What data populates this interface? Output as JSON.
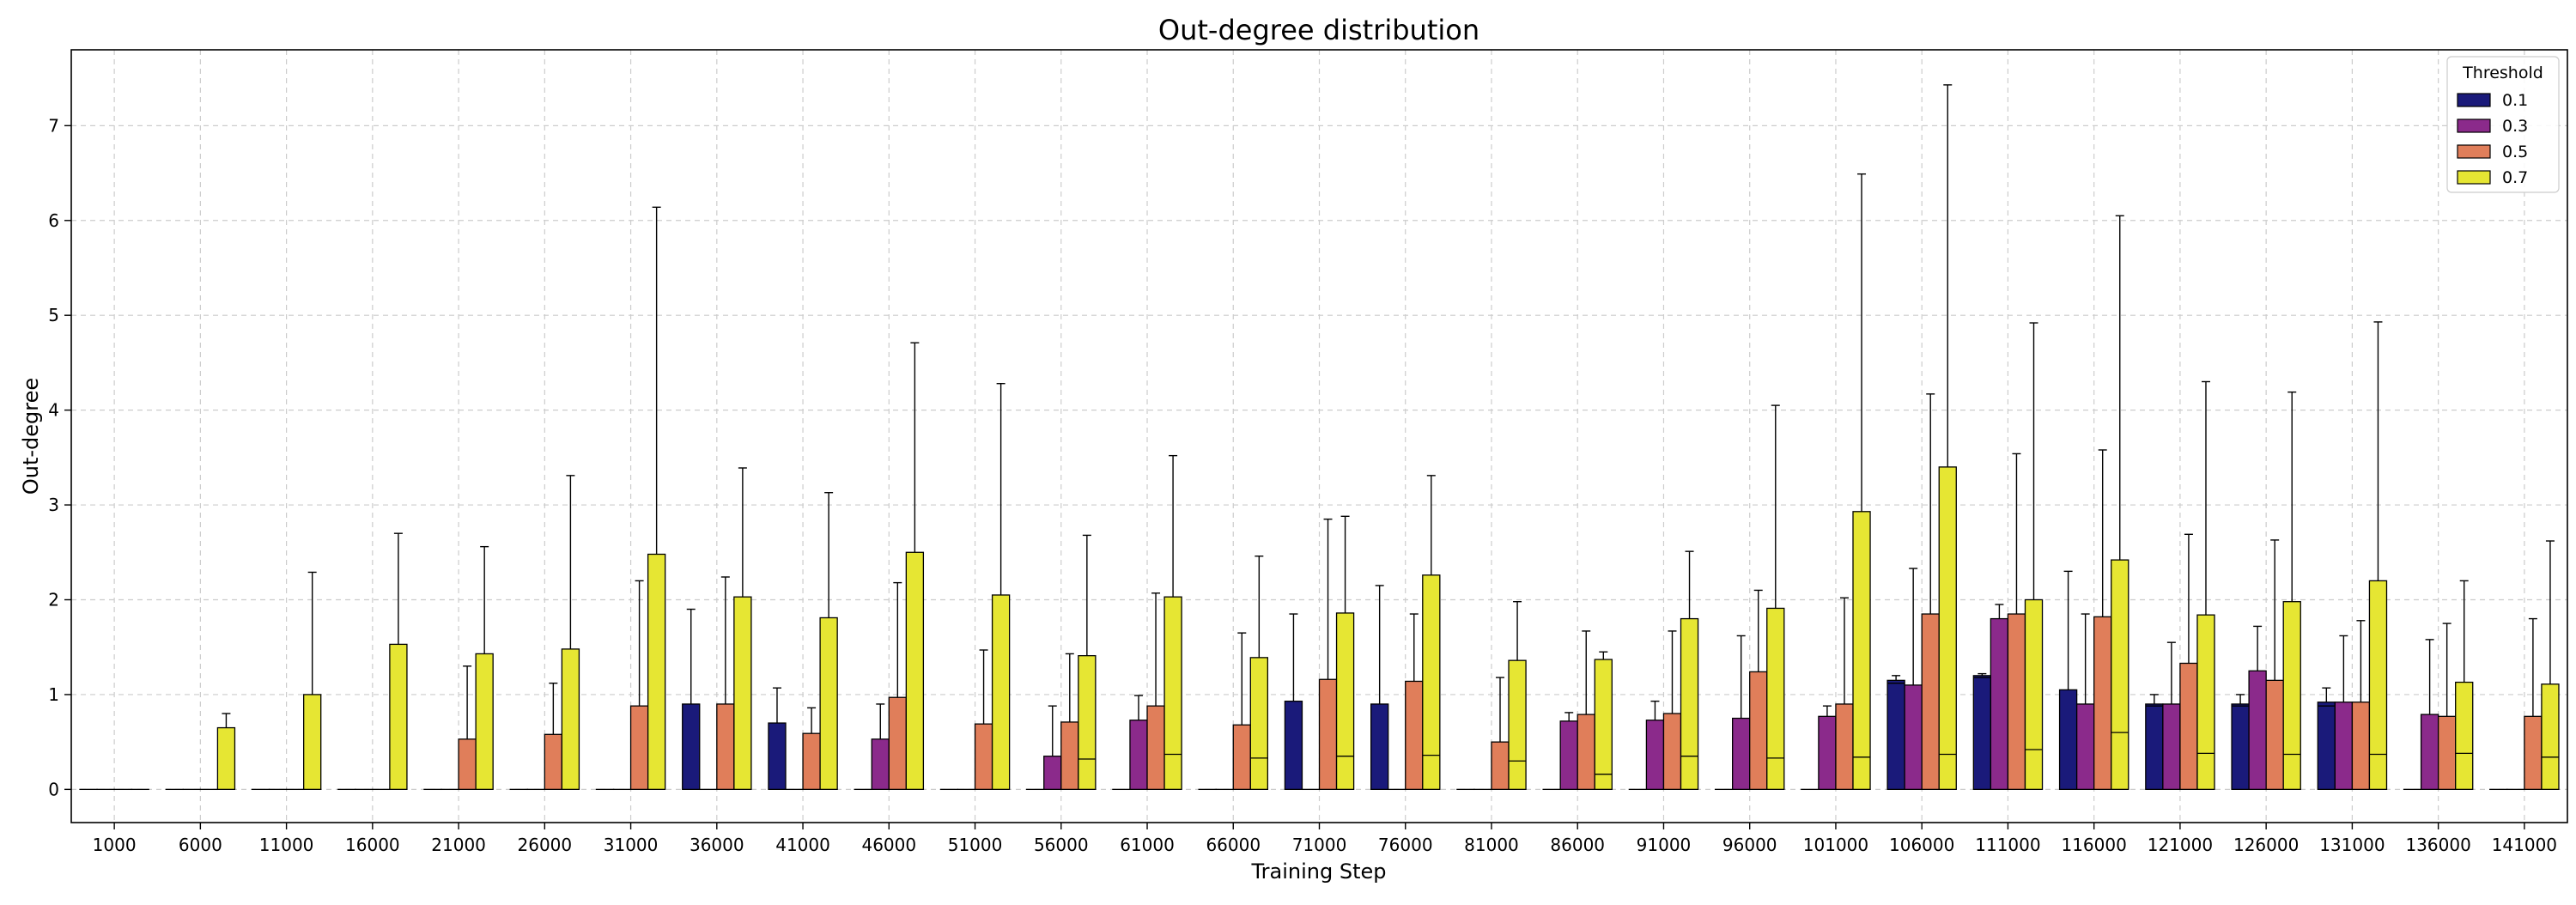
{
  "chart_data": {
    "type": "bar",
    "title": "Out-degree distribution",
    "xlabel": "Training Step",
    "ylabel": "Out-degree",
    "ylim": [
      -0.35,
      7.8
    ],
    "yticks": [
      0,
      1,
      2,
      3,
      4,
      5,
      6,
      7
    ],
    "grid": true,
    "legend_title": "Threshold",
    "legend_position": "top-right",
    "categories": [
      "1000",
      "6000",
      "11000",
      "16000",
      "21000",
      "26000",
      "31000",
      "36000",
      "41000",
      "46000",
      "51000",
      "56000",
      "61000",
      "66000",
      "71000",
      "76000",
      "81000",
      "86000",
      "91000",
      "96000",
      "101000",
      "106000",
      "111000",
      "116000",
      "121000",
      "126000",
      "131000",
      "136000",
      "141000"
    ],
    "series": [
      {
        "name": "0.1",
        "color": "#1a1a7a",
        "values": [
          0,
          0,
          0,
          0,
          0,
          0,
          0,
          0.9,
          0.7,
          0,
          0,
          0,
          0,
          0,
          0.93,
          0.9,
          0,
          0,
          0,
          0,
          0,
          1.15,
          1.2,
          1.05,
          0.9,
          0.9,
          0.92,
          0,
          0
        ],
        "medians": [
          0,
          0,
          0,
          0,
          0,
          0,
          0,
          0,
          0,
          0,
          0,
          0,
          0,
          0,
          0,
          0,
          0,
          0,
          0,
          0,
          0,
          1.12,
          1.18,
          0,
          0.88,
          0.88,
          0.88,
          0,
          0
        ],
        "err_high": [
          0,
          0,
          0,
          0,
          0,
          0,
          0,
          1.9,
          1.07,
          0,
          0,
          0,
          0,
          0,
          1.85,
          2.15,
          0,
          0,
          0,
          0,
          0,
          1.2,
          1.22,
          2.3,
          1.0,
          1.0,
          1.07,
          0,
          0
        ]
      },
      {
        "name": "0.3",
        "color": "#8b2a8b",
        "values": [
          0,
          0,
          0,
          0,
          0,
          0,
          0,
          0,
          0,
          0.53,
          0,
          0.35,
          0.73,
          0,
          0,
          0,
          0,
          0.72,
          0.73,
          0.75,
          0.77,
          1.1,
          1.8,
          0.9,
          0.9,
          1.25,
          0.92,
          0.79,
          0
        ],
        "medians": [
          0,
          0,
          0,
          0,
          0,
          0,
          0,
          0,
          0,
          0,
          0,
          0,
          0,
          0,
          0,
          0,
          0,
          0,
          0,
          0,
          0,
          0,
          0,
          0,
          0,
          0,
          0,
          0,
          0
        ],
        "err_high": [
          0,
          0,
          0,
          0,
          0,
          0,
          0,
          0,
          0,
          0.9,
          0,
          0.88,
          0.99,
          0,
          0,
          0,
          0,
          0.81,
          0.93,
          1.62,
          0.88,
          2.33,
          1.95,
          1.85,
          1.55,
          1.72,
          1.62,
          1.58,
          0
        ]
      },
      {
        "name": "0.5",
        "color": "#e07e5a",
        "values": [
          0,
          0,
          0,
          0,
          0.53,
          0.58,
          0.88,
          0.9,
          0.59,
          0.97,
          0.69,
          0.71,
          0.88,
          0.68,
          1.16,
          1.14,
          0.5,
          0.79,
          0.8,
          1.24,
          0.9,
          1.85,
          1.85,
          1.82,
          1.33,
          1.15,
          0.92,
          0.77,
          0.77
        ],
        "medians": [
          0,
          0,
          0,
          0,
          0,
          0,
          0,
          0,
          0,
          0,
          0,
          0,
          0,
          0,
          0,
          0,
          0,
          0,
          0,
          0,
          0,
          0,
          0,
          0,
          0,
          0,
          0,
          0,
          0
        ],
        "err_high": [
          0,
          0,
          0,
          0,
          1.3,
          1.12,
          2.2,
          2.24,
          0.86,
          2.18,
          1.47,
          1.43,
          2.07,
          1.65,
          2.85,
          1.85,
          1.18,
          1.67,
          1.67,
          2.1,
          2.02,
          4.17,
          3.54,
          3.58,
          2.69,
          2.63,
          1.78,
          1.75,
          1.8
        ]
      },
      {
        "name": "0.7",
        "color": "#e6e633",
        "values": [
          0,
          0.65,
          1.0,
          1.53,
          1.43,
          1.48,
          2.48,
          2.03,
          1.81,
          2.5,
          2.05,
          1.41,
          2.03,
          1.39,
          1.86,
          2.26,
          1.36,
          1.37,
          1.8,
          1.91,
          2.93,
          3.4,
          2.0,
          2.42,
          1.84,
          1.98,
          2.2,
          1.13,
          1.11
        ],
        "medians": [
          0,
          0,
          0,
          0,
          0,
          0,
          0,
          0,
          0,
          0,
          0,
          0.32,
          0.37,
          0.33,
          0.35,
          0.36,
          0.3,
          0.16,
          0.35,
          0.33,
          0.34,
          0.37,
          0.42,
          0.6,
          0.38,
          0.37,
          0.37,
          0.38,
          0.34
        ],
        "err_high": [
          0,
          0.8,
          2.29,
          2.7,
          2.56,
          3.31,
          6.14,
          3.39,
          3.13,
          4.71,
          4.28,
          2.68,
          3.52,
          2.46,
          2.88,
          3.31,
          1.98,
          1.45,
          2.51,
          4.05,
          6.49,
          7.43,
          4.92,
          6.05,
          4.3,
          4.19,
          4.93,
          2.2,
          2.62
        ]
      }
    ]
  }
}
